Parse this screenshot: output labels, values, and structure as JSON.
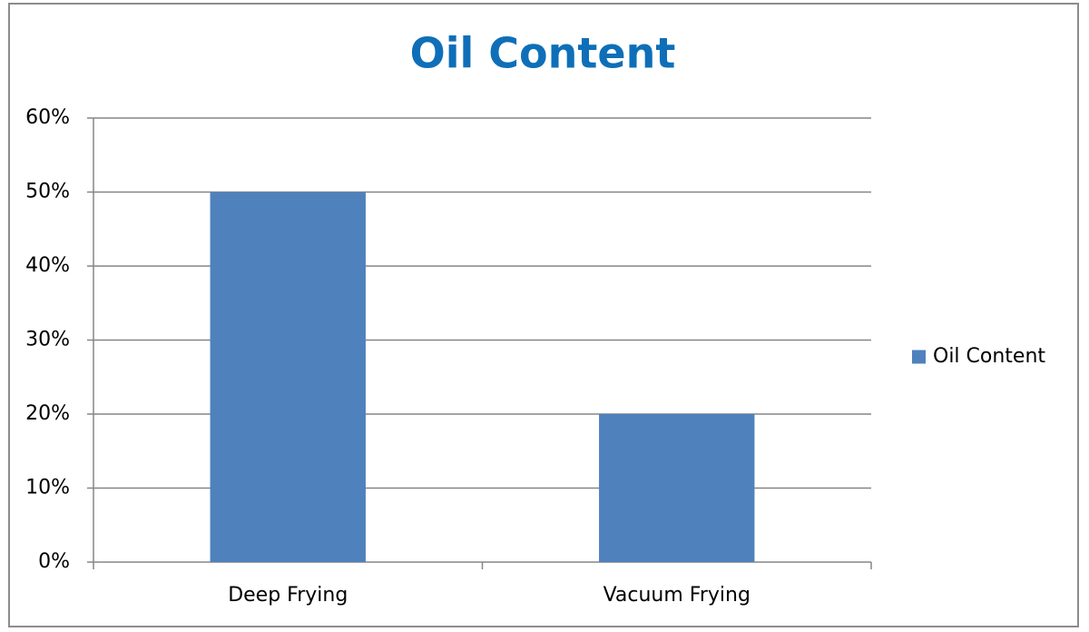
{
  "chart_data": {
    "type": "bar",
    "title": "Oil Content",
    "categories": [
      "Deep Frying",
      "Vacuum Frying"
    ],
    "series": [
      {
        "name": "Oil Content",
        "color": "#4f81bd",
        "values": [
          50,
          20
        ]
      }
    ],
    "ylim": [
      0,
      60
    ],
    "yticks": [
      {
        "value": 0,
        "label": "0%"
      },
      {
        "value": 10,
        "label": "10%"
      },
      {
        "value": 20,
        "label": "20%"
      },
      {
        "value": 30,
        "label": "30%"
      },
      {
        "value": 40,
        "label": "40%"
      },
      {
        "value": 50,
        "label": "50%"
      },
      {
        "value": 60,
        "label": "60%"
      }
    ],
    "grid": true,
    "legend": "right"
  }
}
